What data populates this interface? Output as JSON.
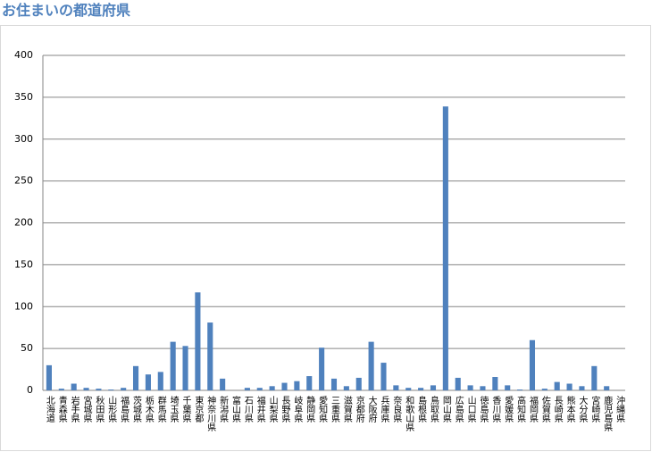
{
  "chart_data": {
    "type": "bar",
    "title": "お住まいの都道府県",
    "categories": [
      "北海道",
      "青森県",
      "岩手県",
      "宮城県",
      "秋田県",
      "山形県",
      "福島県",
      "茨城県",
      "栃木県",
      "群馬県",
      "埼玉県",
      "千葉県",
      "東京都",
      "神奈川県",
      "新潟県",
      "富山県",
      "石川県",
      "福井県",
      "山梨県",
      "長野県",
      "岐阜県",
      "静岡県",
      "愛知県",
      "三重県",
      "滋賀県",
      "京都府",
      "大阪府",
      "兵庫県",
      "奈良県",
      "和歌山県",
      "島根県",
      "鳥取県",
      "岡山県",
      "広島県",
      "山口県",
      "徳島県",
      "香川県",
      "愛媛県",
      "高知県",
      "福岡県",
      "佐賀県",
      "長崎県",
      "熊本県",
      "大分県",
      "宮崎県",
      "鹿児島県",
      "沖縄県"
    ],
    "values": [
      30,
      2,
      8,
      3,
      2,
      1,
      3,
      29,
      19,
      22,
      58,
      53,
      117,
      81,
      14,
      0,
      3,
      3,
      5,
      9,
      11,
      17,
      51,
      14,
      5,
      15,
      58,
      33,
      6,
      3,
      3,
      6,
      339,
      15,
      6,
      5,
      16,
      6,
      1,
      60,
      2,
      10,
      8,
      5,
      29,
      5,
      0
    ],
    "color": "#4f81bd",
    "ylim": [
      0,
      400
    ],
    "yticks": [
      0,
      50,
      100,
      150,
      200,
      250,
      300,
      350,
      400
    ],
    "grid": true
  }
}
